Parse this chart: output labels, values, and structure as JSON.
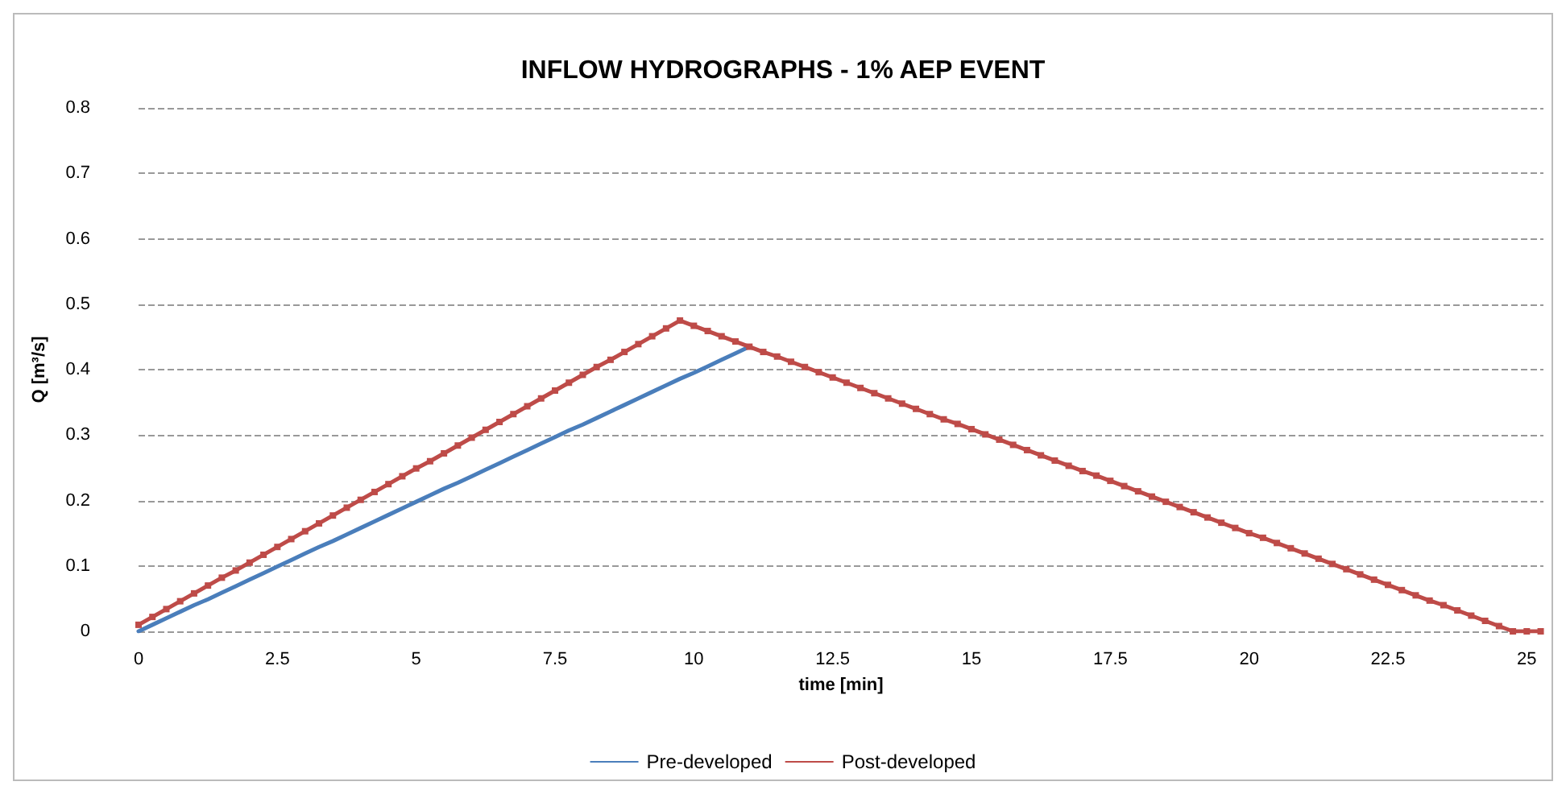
{
  "chart_data": {
    "type": "line",
    "title": "INFLOW HYDROGRAPHS - 1% AEP EVENT",
    "xlabel": "time [min]",
    "ylabel": "Q [m³/s]",
    "xlim": [
      0,
      25.3
    ],
    "xticks": [
      0,
      2.5,
      5,
      7.5,
      10,
      12.5,
      15,
      17.5,
      20,
      22.5,
      25
    ],
    "ylim": [
      0,
      0.8
    ],
    "yticks": [
      0,
      0.1,
      0.2,
      0.3,
      0.4,
      0.5,
      0.6,
      0.7,
      0.8
    ],
    "grid": "y",
    "legend": "bottom",
    "marker": "square",
    "line_style": "solid",
    "series": [
      {
        "name": "Pre-developed",
        "color": "#4a7ebb",
        "marker": "none",
        "x": [
          0,
          0.25,
          0.5,
          0.75,
          1,
          1.25,
          1.5,
          1.75,
          2,
          2.25,
          2.5,
          2.75,
          3,
          3.25,
          3.5,
          3.75,
          4,
          4.25,
          4.5,
          4.75,
          5,
          5.25,
          5.5,
          5.75,
          6,
          6.25,
          6.5,
          6.75,
          7,
          7.25,
          7.5,
          7.75,
          8,
          8.25,
          8.5,
          8.75,
          9,
          9.25,
          9.5,
          9.75,
          10,
          10.25,
          10.5,
          10.75,
          11
        ],
        "values": [
          0,
          0.01,
          0.02,
          0.03,
          0.04,
          0.049,
          0.059,
          0.069,
          0.079,
          0.089,
          0.099,
          0.109,
          0.119,
          0.129,
          0.138,
          0.148,
          0.158,
          0.168,
          0.178,
          0.188,
          0.198,
          0.208,
          0.218,
          0.227,
          0.237,
          0.247,
          0.257,
          0.267,
          0.277,
          0.287,
          0.297,
          0.307,
          0.316,
          0.326,
          0.336,
          0.346,
          0.356,
          0.366,
          0.376,
          0.386,
          0.395,
          0.405,
          0.415,
          0.425,
          0.435
        ]
      },
      {
        "name": "Post-developed",
        "color": "#be4b48",
        "x": [
          0,
          0.25,
          0.5,
          0.75,
          1,
          1.25,
          1.5,
          1.75,
          2,
          2.25,
          2.5,
          2.75,
          3,
          3.25,
          3.5,
          3.75,
          4,
          4.25,
          4.5,
          4.75,
          5,
          5.25,
          5.5,
          5.75,
          6,
          6.25,
          6.5,
          6.75,
          7,
          7.25,
          7.5,
          7.75,
          8,
          8.25,
          8.5,
          8.75,
          9,
          9.25,
          9.5,
          9.75,
          10,
          10.25,
          10.5,
          10.75,
          11,
          11.25,
          11.5,
          11.75,
          12,
          12.25,
          12.5,
          12.75,
          13,
          13.25,
          13.5,
          13.75,
          14,
          14.25,
          14.5,
          14.75,
          15,
          15.25,
          15.5,
          15.75,
          16,
          16.25,
          16.5,
          16.75,
          17,
          17.25,
          17.5,
          17.75,
          18,
          18.25,
          18.5,
          18.75,
          19,
          19.25,
          19.5,
          19.75,
          20,
          20.25,
          20.5,
          20.75,
          21,
          21.25,
          21.5,
          21.75,
          22,
          22.25,
          22.5,
          22.75,
          23,
          23.25,
          23.5,
          23.75,
          24,
          24.25,
          24.5,
          24.75,
          25,
          25.25
        ],
        "values": [
          0.01,
          0.022,
          0.034,
          0.046,
          0.058,
          0.07,
          0.082,
          0.093,
          0.105,
          0.117,
          0.129,
          0.141,
          0.153,
          0.165,
          0.177,
          0.189,
          0.201,
          0.213,
          0.225,
          0.237,
          0.249,
          0.26,
          0.272,
          0.284,
          0.296,
          0.308,
          0.32,
          0.332,
          0.344,
          0.356,
          0.368,
          0.38,
          0.392,
          0.404,
          0.415,
          0.427,
          0.439,
          0.451,
          0.463,
          0.475,
          0.467,
          0.459,
          0.451,
          0.443,
          0.435,
          0.427,
          0.42,
          0.412,
          0.404,
          0.396,
          0.388,
          0.38,
          0.372,
          0.364,
          0.356,
          0.348,
          0.34,
          0.332,
          0.324,
          0.317,
          0.309,
          0.301,
          0.293,
          0.285,
          0.277,
          0.269,
          0.261,
          0.253,
          0.245,
          0.238,
          0.23,
          0.222,
          0.214,
          0.206,
          0.198,
          0.19,
          0.182,
          0.174,
          0.166,
          0.158,
          0.15,
          0.143,
          0.135,
          0.127,
          0.119,
          0.111,
          0.103,
          0.095,
          0.087,
          0.079,
          0.071,
          0.063,
          0.055,
          0.047,
          0.04,
          0.032,
          0.024,
          0.016,
          0.008,
          0,
          0,
          0
        ]
      }
    ]
  }
}
